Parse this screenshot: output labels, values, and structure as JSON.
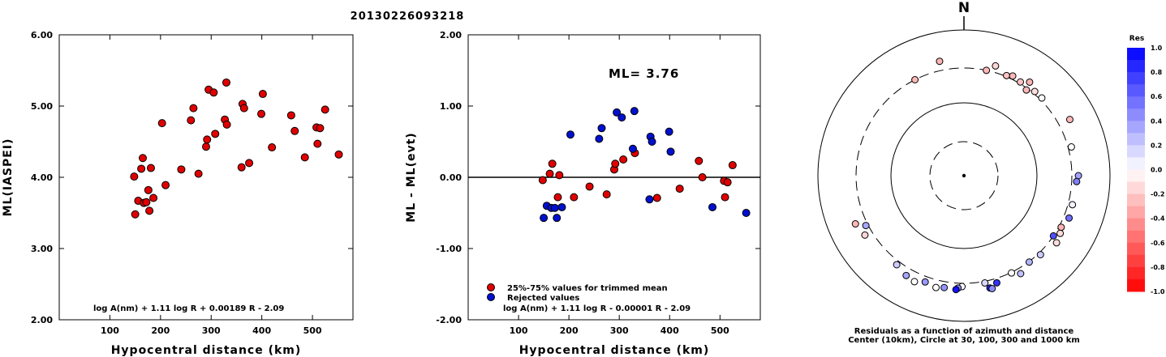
{
  "title": "20130226093218",
  "chart_data": [
    {
      "type": "scatter",
      "xlabel": "Hypocentral distance (km)",
      "ylabel": "ML(IASPEI)",
      "xlim": [
        0,
        580
      ],
      "ylim": [
        2.0,
        6.0
      ],
      "xticks": [
        "100",
        "200",
        "300",
        "400",
        "500"
      ],
      "yticks": [
        "2.00",
        "3.00",
        "4.00",
        "5.00",
        "6.00"
      ],
      "formula": "log A(nm) + 1.11 log R + 0.00189 R - 2.09",
      "series": [
        {
          "color": "#e00000",
          "points": [
            [
              148,
              4.01
            ],
            [
              150,
              3.48
            ],
            [
              156,
              3.67
            ],
            [
              162,
              4.12
            ],
            [
              165,
              4.27
            ],
            [
              167,
              3.64
            ],
            [
              172,
              3.65
            ],
            [
              176,
              3.82
            ],
            [
              178,
              3.53
            ],
            [
              181,
              4.13
            ],
            [
              186,
              3.71
            ],
            [
              203,
              4.76
            ],
            [
              210,
              3.89
            ],
            [
              241,
              4.11
            ],
            [
              260,
              4.8
            ],
            [
              265,
              4.97
            ],
            [
              275,
              4.05
            ],
            [
              290,
              4.43
            ],
            [
              292,
              4.53
            ],
            [
              295,
              5.23
            ],
            [
              305,
              5.19
            ],
            [
              308,
              4.61
            ],
            [
              327,
              4.81
            ],
            [
              330,
              5.33
            ],
            [
              331,
              4.74
            ],
            [
              360,
              4.14
            ],
            [
              362,
              5.03
            ],
            [
              365,
              4.97
            ],
            [
              375,
              4.2
            ],
            [
              399,
              4.89
            ],
            [
              402,
              5.17
            ],
            [
              420,
              4.42
            ],
            [
              458,
              4.87
            ],
            [
              465,
              4.65
            ],
            [
              485,
              4.28
            ],
            [
              508,
              4.7
            ],
            [
              510,
              4.47
            ],
            [
              515,
              4.69
            ],
            [
              525,
              4.95
            ],
            [
              552,
              4.32
            ]
          ]
        }
      ]
    },
    {
      "type": "scatter",
      "xlabel": "Hypocentral distance (km)",
      "ylabel": "ML - ML(evt)",
      "xlim": [
        0,
        580
      ],
      "ylim": [
        -2.0,
        2.0
      ],
      "xticks": [
        "100",
        "200",
        "300",
        "400",
        "500"
      ],
      "yticks": [
        "-2.00",
        "-1.00",
        "0.00",
        "1.00",
        "2.00"
      ],
      "annotation": "ML=  3.76",
      "formula": "log A(nm) + 1.11 log R - 0.00001 R - 2.09",
      "reference_line": 0.0,
      "legend": [
        {
          "label": "25%-75% values for trimmed mean",
          "color": "#e00000"
        },
        {
          "label": "Rejected values",
          "color": "#0010d0"
        }
      ],
      "series": [
        {
          "name": "25%-75% values for trimmed mean",
          "color": "#e00000",
          "points": [
            [
              148,
              -0.04
            ],
            [
              162,
              0.05
            ],
            [
              167,
              0.19
            ],
            [
              178,
              -0.28
            ],
            [
              181,
              0.03
            ],
            [
              210,
              -0.28
            ],
            [
              241,
              -0.13
            ],
            [
              275,
              -0.24
            ],
            [
              290,
              0.11
            ],
            [
              292,
              0.19
            ],
            [
              308,
              0.25
            ],
            [
              331,
              0.34
            ],
            [
              375,
              -0.29
            ],
            [
              420,
              -0.16
            ],
            [
              458,
              0.23
            ],
            [
              465,
              0.0
            ],
            [
              508,
              -0.05
            ],
            [
              510,
              -0.28
            ],
            [
              515,
              -0.07
            ],
            [
              525,
              0.17
            ]
          ]
        },
        {
          "name": "Rejected values",
          "color": "#0010d0",
          "points": [
            [
              150,
              -0.57
            ],
            [
              156,
              -0.4
            ],
            [
              165,
              -0.43
            ],
            [
              172,
              -0.43
            ],
            [
              176,
              -0.57
            ],
            [
              186,
              -0.42
            ],
            [
              203,
              0.6
            ],
            [
              260,
              0.54
            ],
            [
              265,
              0.69
            ],
            [
              295,
              0.91
            ],
            [
              305,
              0.84
            ],
            [
              327,
              0.4
            ],
            [
              330,
              0.93
            ],
            [
              360,
              -0.31
            ],
            [
              362,
              0.57
            ],
            [
              365,
              0.5
            ],
            [
              399,
              0.64
            ],
            [
              402,
              0.36
            ],
            [
              485,
              -0.42
            ],
            [
              552,
              -0.5
            ]
          ]
        }
      ]
    },
    {
      "type": "scatter",
      "subtype": "polar",
      "north_label": "N",
      "caption_line1": "Residuals as a function of azimuth and distance",
      "caption_line2": "Center (10km), Circle at 30, 100, 300 and 1000 km",
      "colorbar_title": "Res",
      "colorbar_ticks": [
        "1.0",
        "0.8",
        "0.6",
        "0.4",
        "0.2",
        "0.0",
        "-0.2",
        "-0.4",
        "-0.6",
        "-0.8",
        "-1.0"
      ],
      "colorbar_range": [
        -1.0,
        1.0
      ],
      "points": [
        {
          "az": 348,
          "dist": 470,
          "res": -0.29
        },
        {
          "az": 333,
          "dist": 300,
          "res": -0.28
        },
        {
          "az": 12,
          "dist": 300,
          "res": -0.28
        },
        {
          "az": 23,
          "dist": 320,
          "res": -0.24
        },
        {
          "az": 26,
          "dist": 360,
          "res": -0.28
        },
        {
          "az": 16,
          "dist": 420,
          "res": -0.16
        },
        {
          "az": 31,
          "dist": 330,
          "res": -0.24
        },
        {
          "az": 35,
          "dist": 420,
          "res": -0.29
        },
        {
          "az": 36,
          "dist": 290,
          "res": -0.28
        },
        {
          "az": 40,
          "dist": 340,
          "res": -0.13
        },
        {
          "az": 45,
          "dist": 340,
          "res": 0.0
        },
        {
          "az": 62,
          "dist": 520,
          "res": -0.28
        },
        {
          "az": 75,
          "dist": 360,
          "res": 0.0
        },
        {
          "az": 90,
          "dist": 420,
          "res": 0.36
        },
        {
          "az": 93,
          "dist": 390,
          "res": 0.5
        },
        {
          "az": 105,
          "dist": 380,
          "res": 0.05
        },
        {
          "az": 112,
          "dist": 400,
          "res": 0.57
        },
        {
          "az": 118,
          "dist": 340,
          "res": -0.3
        },
        {
          "az": 121,
          "dist": 380,
          "res": -0.15
        },
        {
          "az": 126,
          "dist": 420,
          "res": -0.13
        },
        {
          "az": 124,
          "dist": 300,
          "res": 0.69
        },
        {
          "az": 136,
          "dist": 340,
          "res": 0.2
        },
        {
          "az": 143,
          "dist": 310,
          "res": 0.3
        },
        {
          "az": 150,
          "dist": 400,
          "res": 0.25
        },
        {
          "az": 154,
          "dist": 310,
          "res": 0.0
        },
        {
          "az": 163,
          "dist": 380,
          "res": 0.8
        },
        {
          "az": 167,
          "dist": 440,
          "res": 0.9
        },
        {
          "az": 166,
          "dist": 460,
          "res": 0.45
        },
        {
          "az": 169,
          "dist": 330,
          "res": 0.15
        },
        {
          "az": 181,
          "dist": 360,
          "res": 0.0
        },
        {
          "az": 183,
          "dist": 390,
          "res": 0.45
        },
        {
          "az": 184,
          "dist": 420,
          "res": 0.93
        },
        {
          "az": 190,
          "dist": 410,
          "res": 0.42
        },
        {
          "az": 194,
          "dist": 440,
          "res": 0.0
        },
        {
          "az": 200,
          "dist": 400,
          "res": 0.4
        },
        {
          "az": 205,
          "dist": 470,
          "res": 0.0
        },
        {
          "az": 210,
          "dist": 440,
          "res": 0.35
        },
        {
          "az": 217,
          "dist": 370,
          "res": 0.2
        },
        {
          "az": 239,
          "dist": 440,
          "res": -0.16
        },
        {
          "az": 246,
          "dist": 500,
          "res": -0.28
        },
        {
          "az": 243,
          "dist": 340,
          "res": 0.35
        }
      ]
    }
  ]
}
